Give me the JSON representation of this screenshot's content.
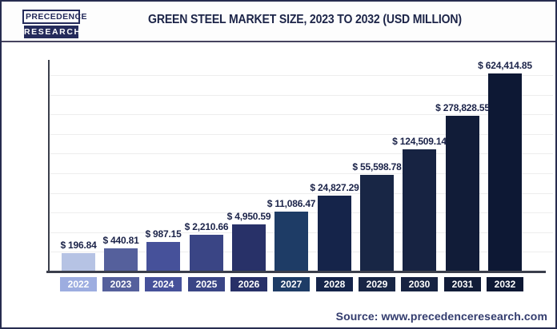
{
  "header": {
    "logo_line1": "PRECEDENCE",
    "logo_line2": "RESEARCH",
    "title": "GREEN STEEL MARKET SIZE, 2023 TO 2032 (USD MILLION)"
  },
  "footer": {
    "source": "Source: www.precedenceresearch.com"
  },
  "colors": {
    "accent_navy": "#1b2349",
    "logo_navy": "#252b5b",
    "axis": "#3b3f4c",
    "gridline": "#ededed",
    "frame_border": "#262c4f",
    "source_text": "#333c6e"
  },
  "chart_data": {
    "type": "bar",
    "title": "Green Steel Market Size, 2023 to 2032 (USD Million)",
    "unit": "USD Million",
    "xlabel": "",
    "ylabel": "",
    "legend": "none",
    "grid": "horizontal",
    "y_axis_labels_visible": false,
    "categories": [
      "2022",
      "2023",
      "2024",
      "2025",
      "2026",
      "2027",
      "2028",
      "2029",
      "2030",
      "2031",
      "2032"
    ],
    "values": [
      196.84,
      440.81,
      987.15,
      2210.66,
      4950.59,
      11086.47,
      24827.29,
      55598.78,
      124509.14,
      278828.55,
      624414.85
    ],
    "value_labels": [
      "$ 196.84",
      "$ 440.81",
      "$ 987.15",
      "$ 2,210.66",
      "$ 4,950.59",
      "$ 11,086.47",
      "$ 24,827.29",
      "$ 55,598.78",
      "$ 124,509.14",
      "$ 278,828.55",
      "$ 624,414.85"
    ],
    "bar_colors": [
      "#b6c3e4",
      "#55609c",
      "#46519a",
      "#3a4585",
      "#283168",
      "#1e3c66",
      "#15244a",
      "#182645",
      "#172342",
      "#111c38",
      "#0d1834"
    ],
    "tick_colors": [
      "#9dade0",
      "#55609c",
      "#46519a",
      "#3a4585",
      "#283168",
      "#1e3c66",
      "#15244a",
      "#182645",
      "#172342",
      "#111c38",
      "#0d1834"
    ]
  }
}
